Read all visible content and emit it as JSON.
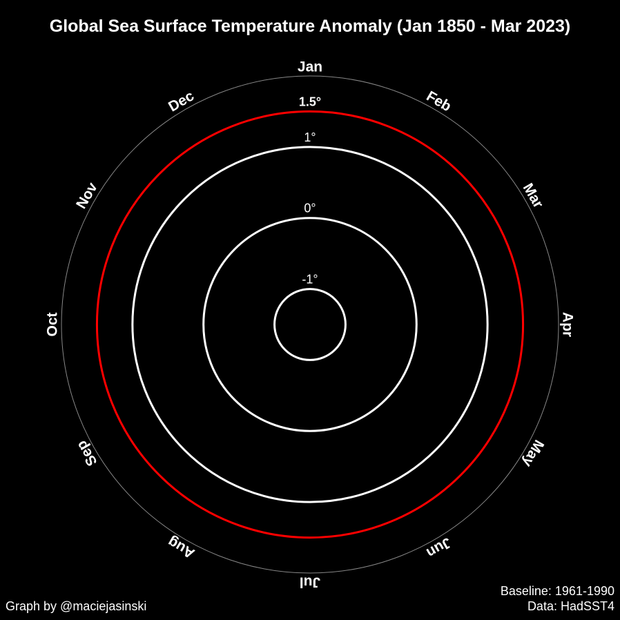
{
  "chart_data": {
    "type": "polar-line",
    "title": "Global Sea Surface Temperature Anomaly (Jan 1850 - Mar 2023)",
    "angular_axis": {
      "labels": [
        "Jan",
        "Feb",
        "Mar",
        "Apr",
        "May",
        "Jun",
        "Jul",
        "Aug",
        "Sep",
        "Oct",
        "Nov",
        "Dec"
      ]
    },
    "radial_axis": {
      "range": [
        -1.5,
        2.0
      ],
      "rings": [
        {
          "value": -1,
          "label": "-1°",
          "color": "#ffffff"
        },
        {
          "value": 0,
          "label": "0°",
          "color": "#ffffff"
        },
        {
          "value": 1,
          "label": "1°",
          "color": "#ffffff"
        },
        {
          "value": 1.5,
          "label": "1.5°",
          "color": "#ff0000"
        }
      ]
    },
    "outer_circle_color": "#888888",
    "series": []
  },
  "credit": "Graph by @maciejasinski",
  "baseline": "Baseline: 1961-1990",
  "source": "Data: HadSST4",
  "colors": {
    "background": "#000000",
    "foreground": "#ffffff",
    "threshold": "#ff0000"
  }
}
